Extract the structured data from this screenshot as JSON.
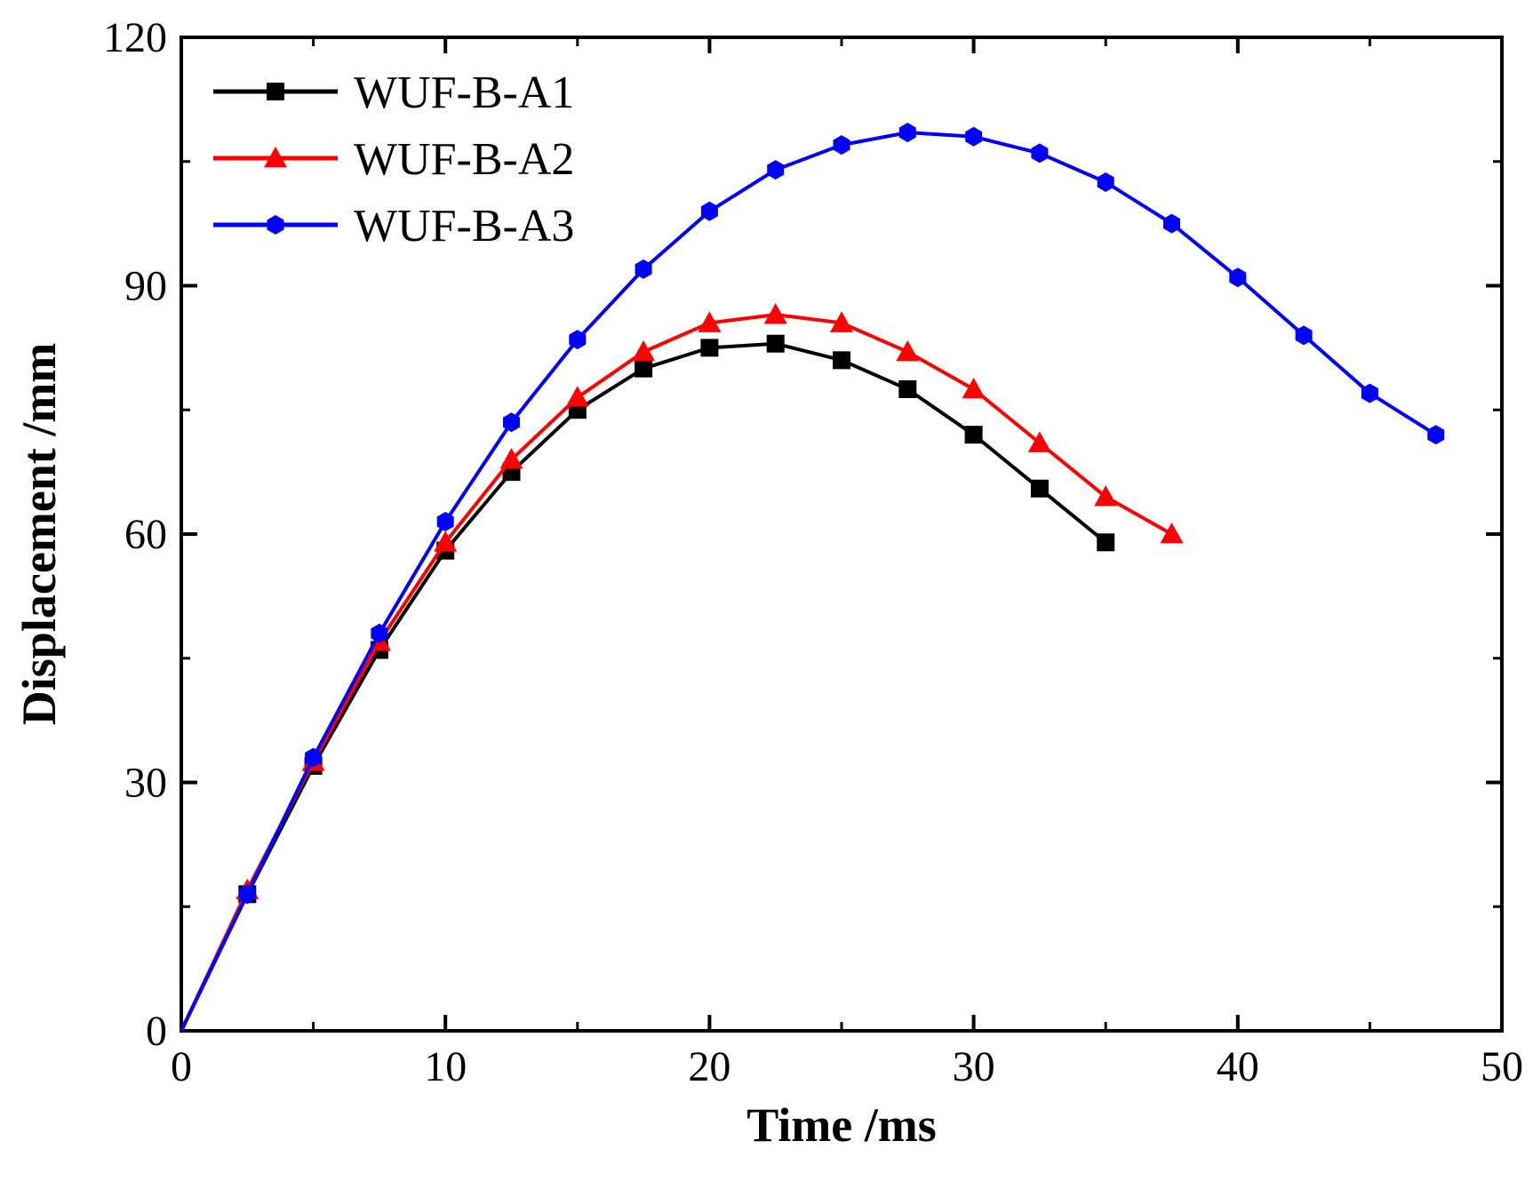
{
  "chart_data": {
    "type": "line",
    "title": "",
    "xlabel": "Time /ms",
    "ylabel": "Displacement /mm",
    "xlim": [
      0,
      50
    ],
    "ylim": [
      0,
      120
    ],
    "xticks": [
      0,
      10,
      20,
      30,
      40,
      50
    ],
    "yticks": [
      0,
      30,
      60,
      90,
      120
    ],
    "xtick_labels": [
      "0",
      "10",
      "20",
      "30",
      "40",
      "50"
    ],
    "ytick_labels": [
      "0",
      "30",
      "60",
      "90",
      "120"
    ],
    "grid": false,
    "legend_position": "top-left",
    "series": [
      {
        "name": "WUF-B-A1",
        "color": "#000000",
        "marker": "square",
        "x": [
          0,
          2.5,
          5,
          7.5,
          10,
          12.5,
          15,
          17.5,
          20,
          22.5,
          25,
          27.5,
          30,
          32.5,
          35
        ],
        "y": [
          0,
          16.5,
          32,
          46,
          58,
          67.5,
          75,
          80,
          82.5,
          83,
          81,
          77.5,
          72,
          65.5,
          59
        ]
      },
      {
        "name": "WUF-B-A2",
        "color": "#ff0000",
        "marker": "triangle",
        "x": [
          0,
          2.5,
          5,
          7.5,
          10,
          12.5,
          15,
          17.5,
          20,
          22.5,
          25,
          27.5,
          30,
          32.5,
          35,
          37.5
        ],
        "y": [
          0,
          17,
          32.5,
          47,
          59,
          69,
          76.5,
          82,
          85.5,
          86.5,
          85.5,
          82,
          77.5,
          71,
          64.5,
          60
        ]
      },
      {
        "name": "WUF-B-A3",
        "color": "#0000ff",
        "marker": "hexagon",
        "x": [
          0,
          2.5,
          5,
          7.5,
          10,
          12.5,
          15,
          17.5,
          20,
          22.5,
          25,
          27.5,
          30,
          32.5,
          35,
          37.5,
          40,
          42.5,
          45,
          47.5
        ],
        "y": [
          0,
          16.5,
          33,
          48,
          61.5,
          73.5,
          83.5,
          92,
          99,
          104,
          107,
          108.5,
          108,
          106,
          102.5,
          97.5,
          91,
          84,
          77,
          72
        ]
      }
    ]
  }
}
